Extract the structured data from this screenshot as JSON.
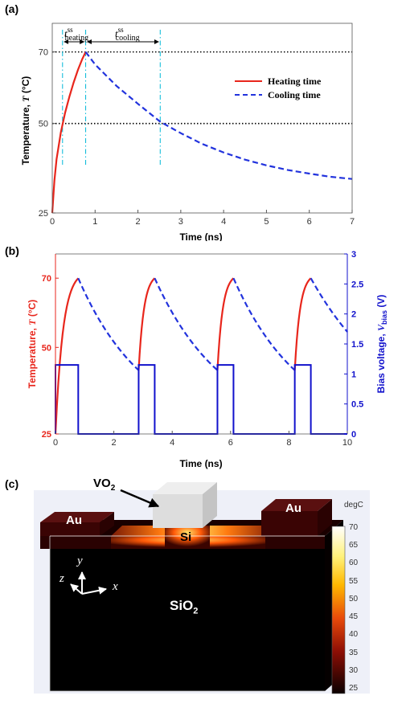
{
  "panels": {
    "a": "(a)",
    "b": "(b)",
    "c": "(c)"
  },
  "chart_data": [
    {
      "type": "line",
      "panel": "(a)",
      "xlabel": "Time (ns)",
      "ylabel_text": "Temperature,",
      "ylabel_symbol": "T",
      "ylabel_unit": "(°C)",
      "xlim": [
        0,
        7
      ],
      "ylim": [
        25,
        78
      ],
      "xticks": [
        0,
        1,
        2,
        3,
        4,
        5,
        6,
        7
      ],
      "yticks": [
        25,
        50,
        70
      ],
      "hlines": [
        50,
        70
      ],
      "vlines": [
        0.24,
        0.78,
        2.52
      ],
      "legend": "top-right",
      "annotations": {
        "t_heating": "t",
        "t_heating_sup": "ss",
        "t_heating_sub": "heating",
        "t_cooling": "t",
        "t_cooling_sup": "ss",
        "t_cooling_sub": "cooling"
      },
      "series": [
        {
          "name": "Heating time",
          "color": "#e8261c",
          "style": "solid",
          "x": [
            0,
            0.05,
            0.1,
            0.2,
            0.3,
            0.4,
            0.5,
            0.6,
            0.7,
            0.78
          ],
          "y": [
            25,
            34,
            40,
            47.5,
            53,
            57.5,
            61.5,
            65,
            68,
            70
          ]
        },
        {
          "name": "Cooling time",
          "color": "#2233dd",
          "style": "dashed",
          "x": [
            0.78,
            1,
            1.5,
            2,
            2.52,
            3,
            3.5,
            4,
            4.5,
            5,
            5.5,
            6,
            6.5,
            7
          ],
          "y": [
            70,
            66.5,
            60.5,
            55.5,
            50.5,
            47.3,
            44.3,
            41.9,
            39.9,
            38.3,
            37,
            36,
            35.1,
            34.5
          ]
        }
      ]
    },
    {
      "type": "line",
      "panel": "(b)",
      "xlabel": "Time (ns)",
      "ylabel_text": "Temperature,",
      "ylabel_symbol": "T",
      "ylabel_unit": "(°C)",
      "y2label_text": "Bias voltage,",
      "y2label_symbol": "V",
      "y2label_sub": "bias",
      "y2label_unit": "(V)",
      "xlim": [
        0,
        10
      ],
      "ylim": [
        25,
        77
      ],
      "y2lim": [
        0,
        3
      ],
      "xticks": [
        0,
        2,
        4,
        6,
        8,
        10
      ],
      "yticks": [
        25,
        50,
        70
      ],
      "y2ticks": [
        0,
        0.5,
        1,
        1.5,
        2,
        2.5,
        3
      ],
      "y2ticklabels": [
        "0",
        "0.5",
        "1",
        "1.5",
        "2",
        "2.5",
        "3"
      ],
      "heating_color": "#e8261c",
      "cooling_color": "#2233dd",
      "bias_color": "#1111cc",
      "cycles": [
        {
          "t_start": 0,
          "T_start": 25,
          "t_peak": 0.78,
          "t_end": 2.85,
          "T_end": 43.4
        },
        {
          "t_start": 2.85,
          "T_start": 43.4,
          "t_peak": 3.4,
          "t_end": 5.55,
          "T_end": 43.4
        },
        {
          "t_start": 5.55,
          "T_start": 43.4,
          "t_peak": 6.1,
          "t_end": 8.2,
          "T_end": 43.4
        },
        {
          "t_start": 8.2,
          "T_start": 43.4,
          "t_peak": 8.75,
          "t_end": 10,
          "T_end": 54.5
        }
      ],
      "T_peak": 70,
      "bias_high": 1.15,
      "bias_pulses": [
        [
          0,
          0.78
        ],
        [
          2.85,
          3.4
        ],
        [
          5.55,
          6.1
        ],
        [
          8.2,
          8.75
        ]
      ]
    }
  ],
  "simulation": {
    "labels": {
      "vo2": "VO",
      "vo2_sub": "2",
      "si": "Si",
      "au_left": "Au",
      "au_right": "Au",
      "sio2": "SiO",
      "sio2_sub": "2"
    },
    "axes": {
      "x": "x",
      "y": "y",
      "z": "z"
    },
    "colorbar": {
      "unit": "degC",
      "ticks": [
        "70",
        "65",
        "60",
        "55",
        "50",
        "45",
        "40",
        "35",
        "30",
        "25"
      ]
    }
  }
}
